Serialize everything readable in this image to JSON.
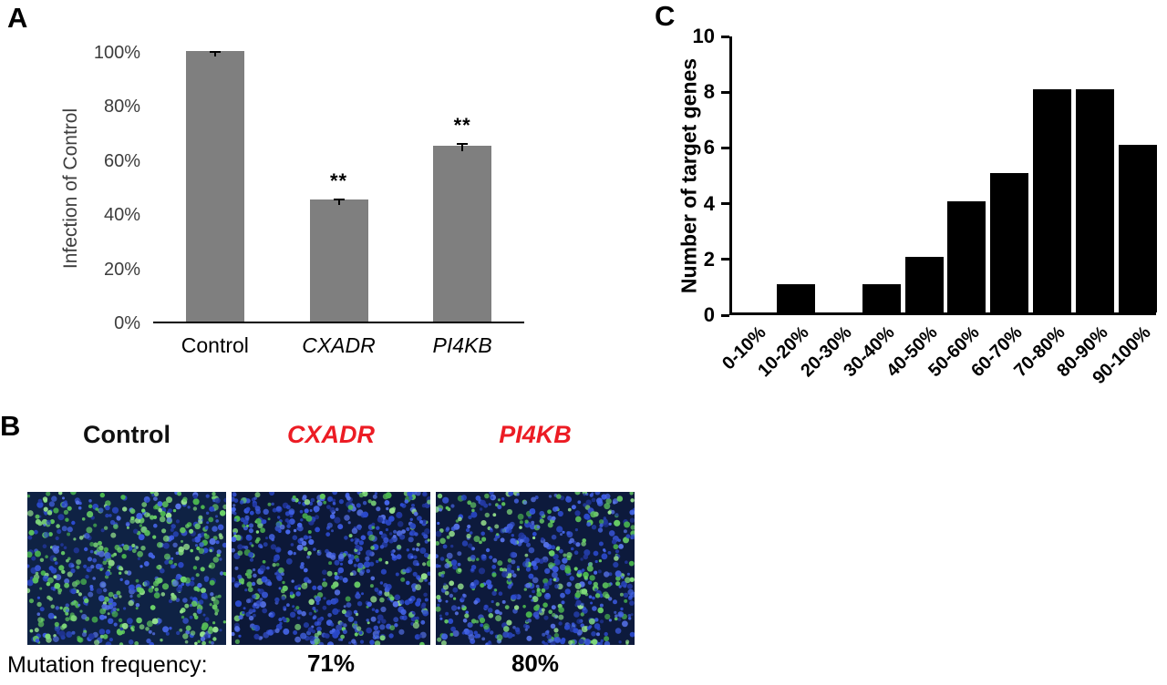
{
  "panel_a": {
    "label": "A"
  },
  "panel_c": {
    "label": "C"
  },
  "panel_b": {
    "label": "B",
    "headers": [
      "Control",
      "CXADR",
      "PI4KB"
    ],
    "header_colors": [
      "#111111",
      "#ec1c24",
      "#ec1c24"
    ],
    "header_styles": [
      "normal",
      "italic",
      "italic"
    ],
    "images": [
      "control-micrograph",
      "cxadr-micrograph",
      "pi4kb-micrograph"
    ],
    "mutation_label": "Mutation frequency:",
    "mutation_values": [
      "71%",
      "80%"
    ]
  },
  "chart_data": [
    {
      "id": "infection-of-control",
      "type": "bar",
      "panel": "A",
      "categories": [
        "Control",
        "CXADR",
        "PI4KB"
      ],
      "category_styles": [
        "normal",
        "italic",
        "italic"
      ],
      "values": [
        100,
        45,
        65
      ],
      "errors": [
        0.7,
        1.0,
        1.5
      ],
      "annotations": [
        "",
        "**",
        "**"
      ],
      "title": "",
      "xlabel": "",
      "ylabel": "Infection of Control",
      "ylim": [
        0,
        100
      ],
      "yticks": [
        {
          "value": 0,
          "label": "0%"
        },
        {
          "value": 20,
          "label": "20%"
        },
        {
          "value": 40,
          "label": "40%"
        },
        {
          "value": 60,
          "label": "60%"
        },
        {
          "value": 80,
          "label": "80%"
        },
        {
          "value": 100,
          "label": "100%"
        }
      ],
      "bar_color": "#7f7f7f",
      "grid": false,
      "legend": false
    },
    {
      "id": "target-gene-mutation-frequency-distribution",
      "type": "bar",
      "panel": "C",
      "categories": [
        "0-10%",
        "10-20%",
        "20-30%",
        "30-40%",
        "40-50%",
        "50-60%",
        "60-70%",
        "70-80%",
        "80-90%",
        "90-100%"
      ],
      "values": [
        0,
        1,
        0,
        1,
        2,
        4,
        5,
        8,
        8,
        6
      ],
      "title": "",
      "xlabel": "",
      "ylabel": "Number of target genes",
      "ylim": [
        0,
        10
      ],
      "yticks": [
        {
          "value": 0,
          "label": "0"
        },
        {
          "value": 2,
          "label": "2"
        },
        {
          "value": 4,
          "label": "4"
        },
        {
          "value": 6,
          "label": "6"
        },
        {
          "value": 8,
          "label": "8"
        },
        {
          "value": 10,
          "label": "10"
        }
      ],
      "bar_color": "#000000",
      "grid": false,
      "legend": false
    }
  ]
}
